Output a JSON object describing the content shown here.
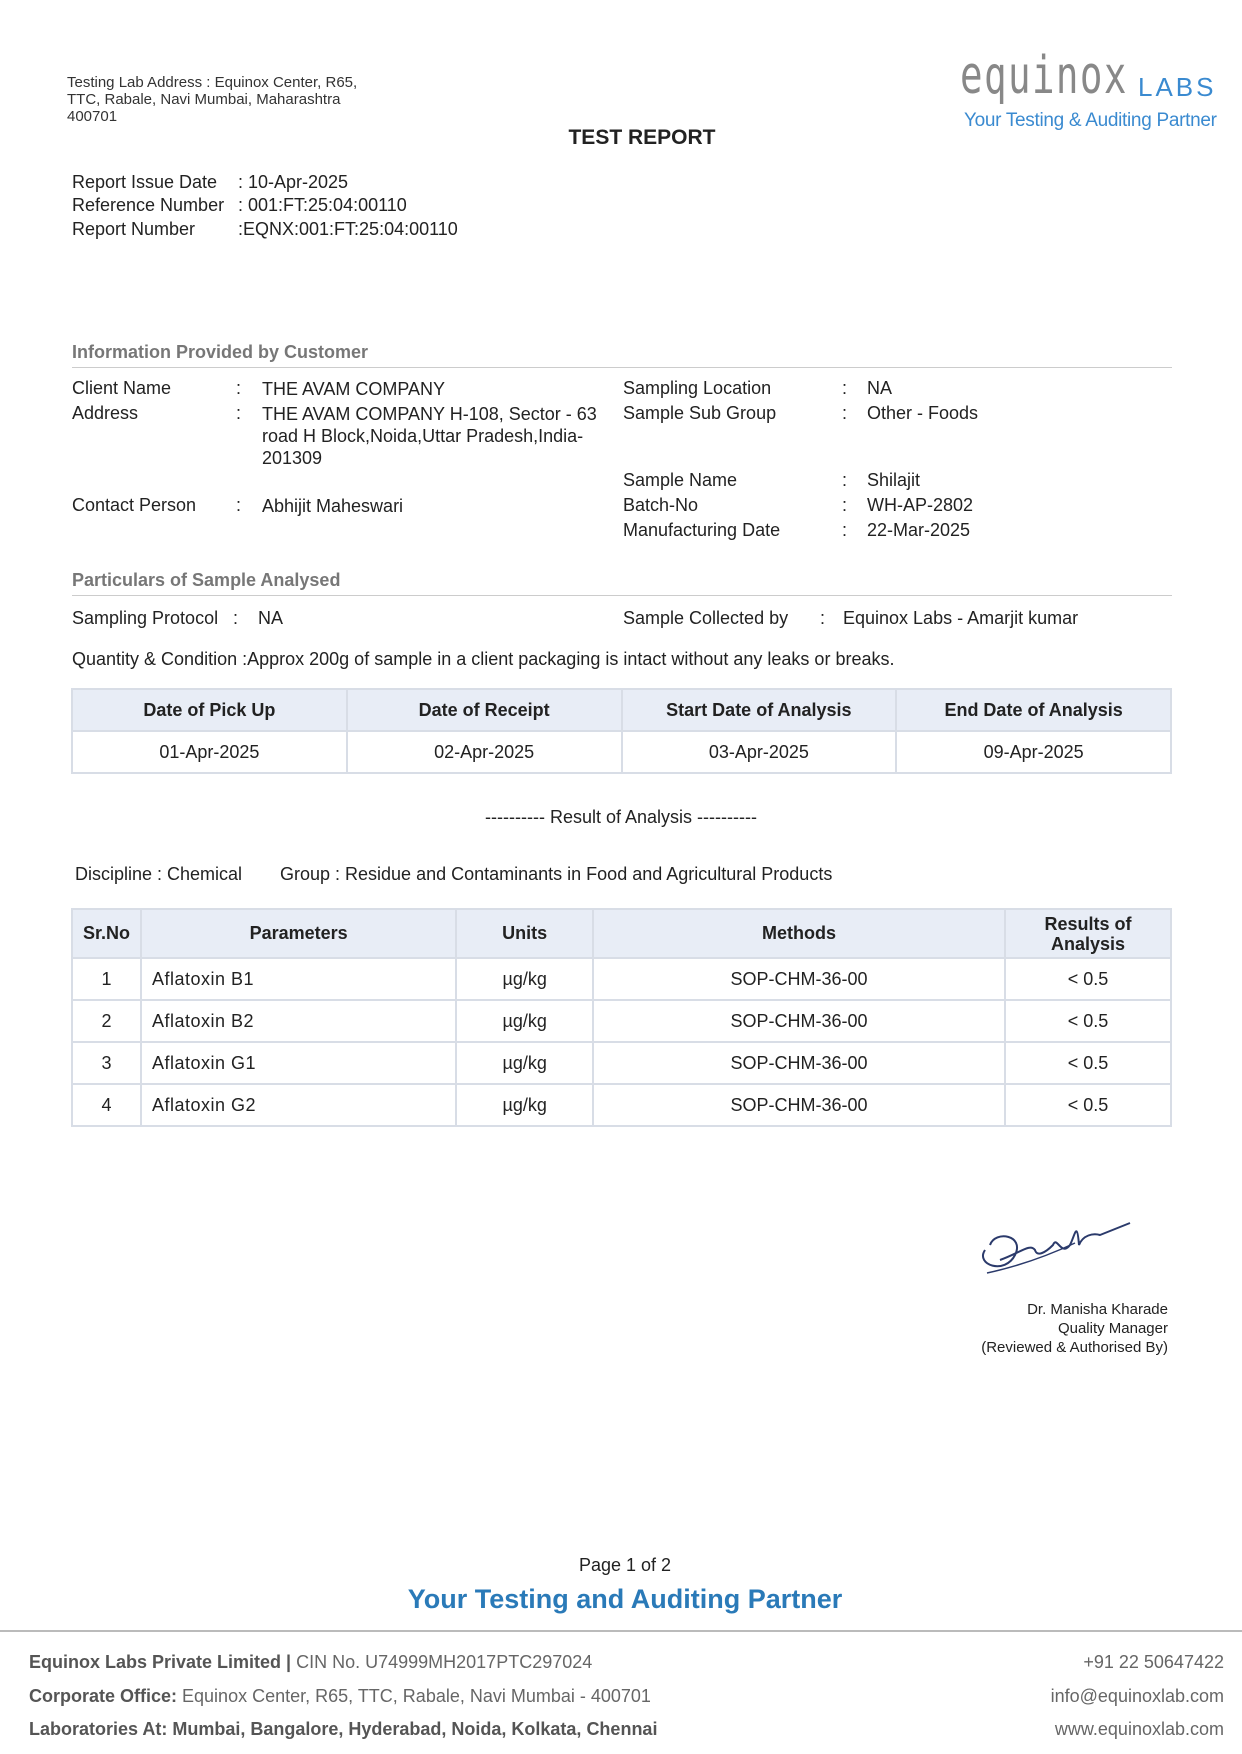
{
  "header": {
    "lab_address": [
      "Testing Lab Address : Equinox Center, R65,",
      "TTC, Rabale, Navi Mumbai, Maharashtra",
      "400701"
    ],
    "logo_text": "equinox",
    "logo_labs": "LABS",
    "logo_tagline": "Your Testing & Auditing Partner",
    "title": "TEST REPORT"
  },
  "report": [
    {
      "label": "Report Issue Date",
      "value": ": 10-Apr-2025"
    },
    {
      "label": "Reference Number",
      "value": ": 001:FT:25:04:00110"
    },
    {
      "label": "Report Number",
      "value": ":EQNX:001:FT:25:04:00110"
    }
  ],
  "customer": {
    "heading": "Information Provided by Customer",
    "left": [
      {
        "label": "Client Name",
        "value": "THE AVAM COMPANY"
      },
      {
        "label": "Address",
        "value": "THE AVAM COMPANY H-108, Sector - 63 road H Block,Noida,Uttar Pradesh,India-201309"
      },
      {
        "label": "Contact Person",
        "value": "Abhijit Maheswari"
      }
    ],
    "right": [
      {
        "label": "Sampling Location",
        "value": "NA"
      },
      {
        "label": "Sample Sub Group",
        "value": "Other - Foods"
      },
      {
        "label": "Sample Name",
        "value": "Shilajit"
      },
      {
        "label": "Batch-No",
        "value": "WH-AP-2802"
      },
      {
        "label": "Manufacturing Date",
        "value": "22-Mar-2025"
      }
    ]
  },
  "particulars": {
    "heading": "Particulars of Sample Analysed",
    "protocol_label": "Sampling Protocol",
    "protocol_value": "NA",
    "collected_label": "Sample Collected by",
    "collected_value": "Equinox Labs - Amarjit kumar",
    "quantity_label": "Quantity & Condition :",
    "quantity_value": "Approx 200g of sample in a client packaging is intact without any leaks or breaks."
  },
  "dates": {
    "headers": [
      "Date of Pick Up",
      "Date of Receipt",
      "Start Date of Analysis",
      "End Date of Analysis"
    ],
    "values": [
      "01-Apr-2025",
      "02-Apr-2025",
      "03-Apr-2025",
      "09-Apr-2025"
    ]
  },
  "results": {
    "heading": "----------  Result of Analysis  ----------",
    "discipline": "Discipline : Chemical",
    "group": "Group : Residue and Contaminants in Food and Agricultural Products",
    "headers": [
      "Sr.No",
      "Parameters",
      "Units",
      "Methods",
      "Results of Analysis"
    ],
    "rows": [
      [
        "1",
        "Aflatoxin B1",
        "µg/kg",
        "SOP-CHM-36-00",
        "< 0.5"
      ],
      [
        "2",
        "Aflatoxin B2",
        "µg/kg",
        "SOP-CHM-36-00",
        "< 0.5"
      ],
      [
        "3",
        "Aflatoxin G1",
        "µg/kg",
        "SOP-CHM-36-00",
        "< 0.5"
      ],
      [
        "4",
        "Aflatoxin G2",
        "µg/kg",
        "SOP-CHM-36-00",
        "< 0.5"
      ]
    ]
  },
  "signatory": {
    "name": "Dr. Manisha Kharade",
    "role": "Quality Manager",
    "note": "(Reviewed & Authorised By)"
  },
  "page": "Page 1 of 2",
  "tagline": "Your Testing and Auditing Partner",
  "footer": {
    "company": "Equinox Labs Private Limited |",
    "cin": " CIN No. U74999MH2017PTC297024",
    "office_label": "Corporate Office:",
    "office": " Equinox Center, R65, TTC, Rabale, Navi Mumbai - 400701",
    "labs": "Laboratories At: Mumbai, Bangalore, Hyderabad, Noida, Kolkata, Chennai",
    "phone": "+91 22 50647422",
    "email": "info@equinoxlab.com",
    "web": "www.equinoxlab.com"
  },
  "colors": {
    "brand_blue": "#2a7ab8",
    "header_bg": "#e8edf6"
  }
}
